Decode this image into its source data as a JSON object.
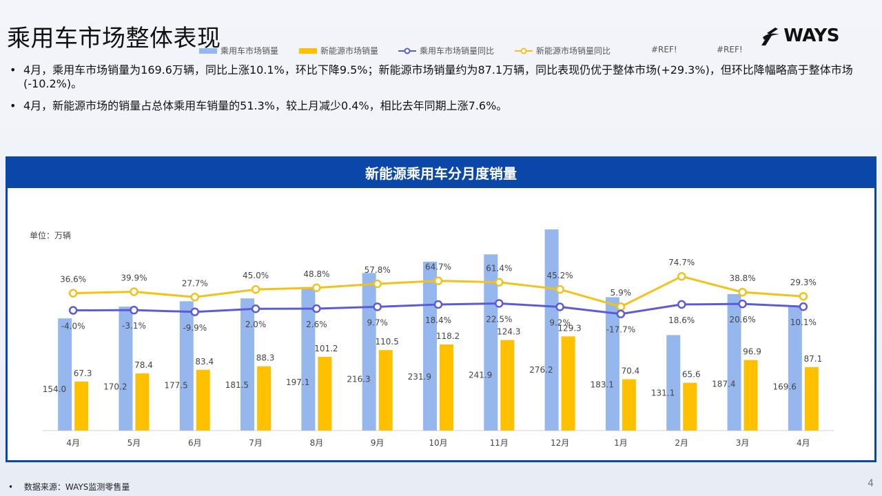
{
  "page": {
    "title": "乘用车市场整体表现",
    "logo_text": "WAYS",
    "bullets": [
      "4月，乘用车市场销量为169.6万辆，同比上涨10.1%，环比下降9.5%；新能源市场销量约为87.1万辆，同比表现仍优于整体市场(+29.3%)，但环比降幅略高于整体市场(-10.2%)。",
      "4月，新能源市场的销量占总体乘用车销量的51.3%，较上月减少0.4%，相比去年同期上涨7.6%。"
    ],
    "footer": "数据来源：WAYS监测零售量",
    "page_number": "4"
  },
  "colors": {
    "panel_blue": "#0a47a8",
    "bar_total": "#96b7ee",
    "bar_nev": "#ffc000",
    "line_total": "#5b5bd6",
    "line_nev": "#f2c21a"
  },
  "chart_data": {
    "type": "bar",
    "title": "新能源乘用车分月度销量",
    "unit_label": "单位：万辆",
    "categories": [
      "4月",
      "5月",
      "6月",
      "7月",
      "8月",
      "9月",
      "10月",
      "11月",
      "12月",
      "1月",
      "2月",
      "3月",
      "4月"
    ],
    "series": [
      {
        "name": "乘用车市场销量",
        "type": "bar",
        "values": [
          154.0,
          170.2,
          177.5,
          181.5,
          197.1,
          216.3,
          231.9,
          241.9,
          276.2,
          183.1,
          131.1,
          187.4,
          169.6
        ],
        "labels": [
          "154.0",
          "170.2",
          "177.5",
          "181.5",
          "197.1",
          "216.3",
          "231.9",
          "241.9",
          "276.2",
          "183.1",
          "131.1",
          "187.4",
          "169.6"
        ]
      },
      {
        "name": "新能源市场销量",
        "type": "bar",
        "values": [
          67.3,
          78.4,
          83.4,
          88.3,
          101.2,
          110.5,
          118.2,
          124.3,
          129.3,
          70.4,
          65.6,
          96.9,
          87.1
        ],
        "labels": [
          "67.3",
          "78.4",
          "83.4",
          "88.3",
          "101.2",
          "110.5",
          "118.2",
          "124.3",
          "129.3",
          "70.4",
          "65.6",
          "96.9",
          "87.1"
        ]
      },
      {
        "name": "乘用车市场销量同比",
        "type": "line",
        "values": [
          -4.0,
          -3.1,
          -9.9,
          2.0,
          2.6,
          9.7,
          18.4,
          22.5,
          9.2,
          -17.7,
          18.6,
          20.6,
          10.1
        ],
        "labels": [
          "-4.0%",
          "-3.1%",
          "-9.9%",
          "2.0%",
          "2.6%",
          "9.7%",
          "18.4%",
          "22.5%",
          "9.2%",
          "-17.7%",
          "18.6%",
          "20.6%",
          "10.1%"
        ]
      },
      {
        "name": "新能源市场销量同比",
        "type": "line",
        "values": [
          36.6,
          39.9,
          27.7,
          45.0,
          48.8,
          57.8,
          64.7,
          61.4,
          45.2,
          5.9,
          74.7,
          38.8,
          29.3
        ],
        "labels": [
          "36.6%",
          "39.9%",
          "27.7%",
          "45.0%",
          "48.8%",
          "57.8%",
          "64.7%",
          "61.4%",
          "45.2%",
          "5.9%",
          "74.7%",
          "38.8%",
          "29.3%"
        ]
      }
    ],
    "legend_extra": [
      "#REF!",
      "#REF!"
    ]
  }
}
